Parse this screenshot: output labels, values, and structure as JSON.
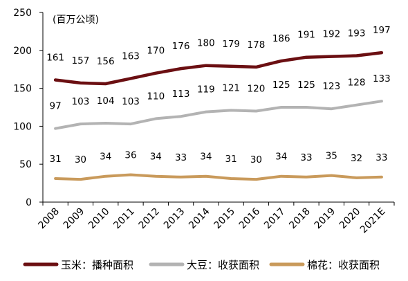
{
  "chart_data": {
    "type": "line",
    "unit_label": "(百万公顷)",
    "xlabel": "",
    "ylabel": "",
    "ylim": [
      0,
      250
    ],
    "yticks": [
      0,
      50,
      100,
      150,
      200,
      250
    ],
    "grid": false,
    "legend_position": "bottom",
    "categories": [
      "2008",
      "2009",
      "2010",
      "2011",
      "2012",
      "2013",
      "2014",
      "2015",
      "2016",
      "2017",
      "2018",
      "2019",
      "2020",
      "2021E"
    ],
    "series": [
      {
        "name": "玉米：播种面积",
        "color": "#6b0f12",
        "values": [
          161,
          157,
          156,
          163,
          170,
          176,
          180,
          179,
          178,
          186,
          191,
          192,
          193,
          197
        ]
      },
      {
        "name": "大豆：收获面积",
        "color": "#b3b3b3",
        "values": [
          97,
          103,
          104,
          103,
          110,
          113,
          119,
          121,
          120,
          125,
          125,
          123,
          128,
          133
        ]
      },
      {
        "name": "棉花：收获面积",
        "color": "#c99a5b",
        "values": [
          31,
          30,
          34,
          36,
          34,
          33,
          34,
          31,
          30,
          34,
          33,
          35,
          32,
          33
        ]
      }
    ]
  }
}
